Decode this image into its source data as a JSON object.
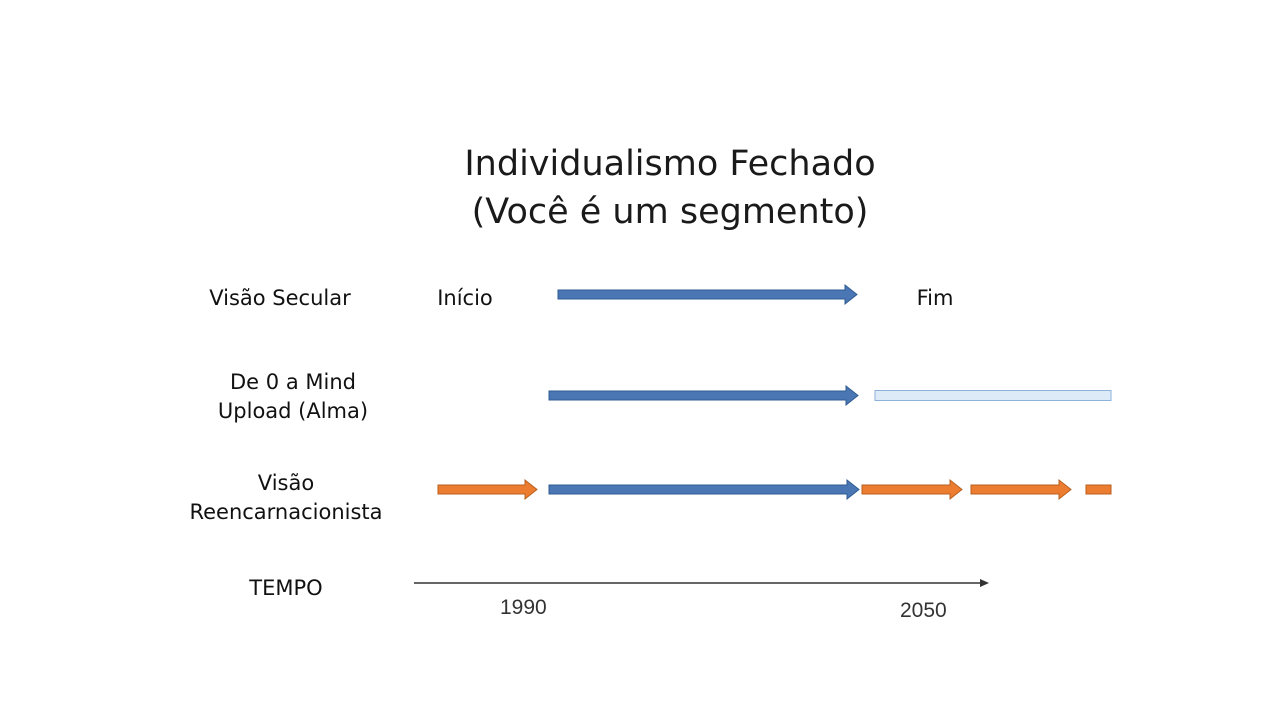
{
  "title": {
    "line1": "Individualismo Fechado",
    "line2": "(Você é um segmento)"
  },
  "rows": {
    "secular": {
      "label": "Visão Secular",
      "start": "Início",
      "end": "Fim"
    },
    "mind_upload": {
      "label_line1": "De 0 a Mind",
      "label_line2": "Upload (Alma)"
    },
    "reincarnation": {
      "label_line1": "Visão",
      "label_line2": "Reencarnacionista"
    },
    "time": {
      "label": "TEMPO",
      "tick_start": "1990",
      "tick_end": "2050"
    }
  },
  "colors": {
    "life_arrow": "#4a77b4",
    "life_arrow_stroke": "#2f5b92",
    "upload_bar": "#ddeaf8",
    "upload_bar_stroke": "#8eb3da",
    "reincarnation_arrow": "#ec7c30",
    "reincarnation_arrow_stroke": "#b8601f",
    "axis": "#333333"
  }
}
